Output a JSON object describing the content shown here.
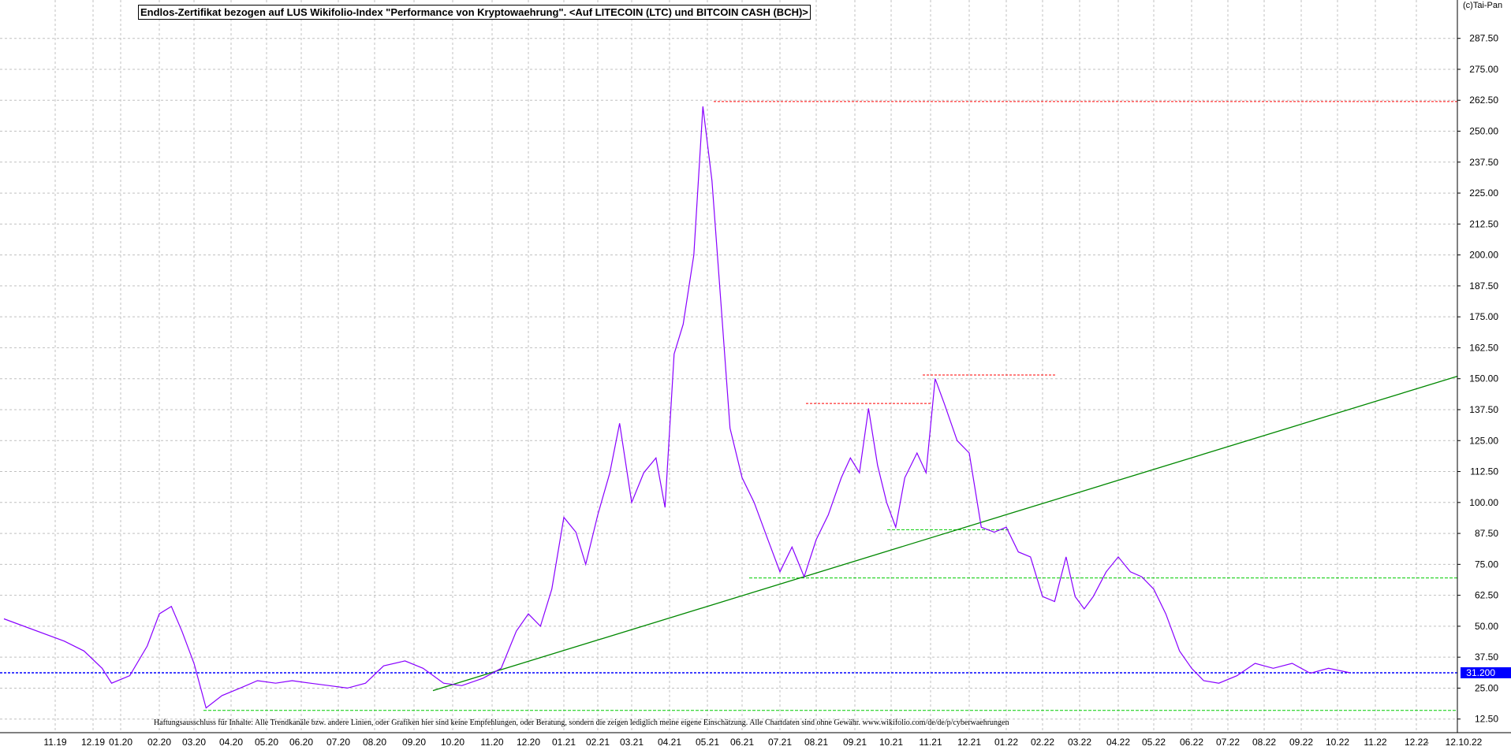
{
  "title": "Endlos-Zertifikat bezogen auf LUS Wikifolio-Index \"Performance von Kryptowaehrung\". <Auf LITECOIN (LTC) und BITCOIN CASH (BCH)>",
  "copyright": "(c)Tai-Pan",
  "disclaimer": "Haftungsausschluss für Inhalte: Alle Trendkanäle bzw. andere Linien, oder Grafiken hier sind keine Empfehlungen, oder Beratung, sondern die zeigen lediglich meine eigene Einschätzung. Alle Chartdaten sind ohne Gewähr.  www.wikifolio.com/de/de/p/cyberwaehrungen",
  "colors": {
    "price_line": "#8800ff",
    "trend_line": "#008800",
    "support_line": "#00cc00",
    "resistance_line": "#ff0000",
    "current_line": "#0000ff",
    "grid": "#c0c0c0"
  },
  "chart_data": {
    "type": "line",
    "title": "Endlos-Zertifikat bezogen auf LUS Wikifolio-Index \"Performance von Kryptowaehrung\". <Auf LITECOIN (LTC) und BITCOIN CASH (BCH)>",
    "x_tick_labels": [
      "11.19",
      "12.19",
      "01.20",
      "02.20",
      "03.20",
      "04.20",
      "05.20",
      "06.20",
      "07.20",
      "08.20",
      "09.20",
      "10.20",
      "11.20",
      "12.20",
      "01.21",
      "02.21",
      "03.21",
      "04.21",
      "05.21",
      "06.21",
      "07.21",
      "08.21",
      "09.21",
      "10.21",
      "11.21",
      "12.21",
      "01.22",
      "02.22",
      "03.22",
      "04.22",
      "05.22",
      "06.22",
      "07.22",
      "08.22",
      "09.22",
      "10.22",
      "11.22",
      "12.22",
      "-",
      "12.10.22"
    ],
    "y_tick_labels": [
      "12.50",
      "25.00",
      "37.50",
      "50.00",
      "62.50",
      "75.00",
      "87.50",
      "100.00",
      "112.50",
      "125.00",
      "137.50",
      "150.00",
      "162.50",
      "175.00",
      "187.50",
      "200.00",
      "212.50",
      "225.00",
      "237.50",
      "250.00",
      "262.50",
      "275.00",
      "287.50"
    ],
    "ylim": [
      7.0,
      303.0
    ],
    "grid": true,
    "current_value": 31.2,
    "current_value_label": "31.200",
    "series": [
      {
        "points": [
          [
            "11.19",
            53
          ],
          [
            "11.19",
            44
          ],
          [
            "12.19",
            40
          ],
          [
            "12.19",
            33
          ],
          [
            "01.20",
            27
          ],
          [
            "01.20",
            30
          ],
          [
            "02.20",
            42
          ],
          [
            "02.20",
            55
          ],
          [
            "02.20",
            58
          ],
          [
            "03.20",
            48
          ],
          [
            "03.20",
            35
          ],
          [
            "03.20",
            17
          ],
          [
            "04.20",
            22
          ],
          [
            "04.20",
            25
          ],
          [
            "05.20",
            28
          ],
          [
            "05.20",
            27
          ],
          [
            "06.20",
            28
          ],
          [
            "06.20",
            27
          ],
          [
            "07.20",
            26
          ],
          [
            "07.20",
            25
          ],
          [
            "08.20",
            27
          ],
          [
            "08.20",
            34
          ],
          [
            "09.20",
            36
          ],
          [
            "09.20",
            33
          ],
          [
            "10.20",
            27
          ],
          [
            "10.20",
            26
          ],
          [
            "11.20",
            29
          ],
          [
            "11.20",
            33
          ],
          [
            "12.20",
            48
          ],
          [
            "12.20",
            55
          ],
          [
            "12.20",
            50
          ],
          [
            "01.21",
            65
          ],
          [
            "01.21",
            94
          ],
          [
            "01.21",
            88
          ],
          [
            "02.21",
            75
          ],
          [
            "02.21",
            95
          ],
          [
            "02.21",
            112
          ],
          [
            "03.21",
            132
          ],
          [
            "03.21",
            100
          ],
          [
            "03.21",
            112
          ],
          [
            "04.21",
            118
          ],
          [
            "04.21",
            98
          ],
          [
            "04.21",
            160
          ],
          [
            "04.21",
            172
          ],
          [
            "05.21",
            200
          ],
          [
            "05.21",
            260
          ],
          [
            "05.21",
            230
          ],
          [
            "05.21",
            180
          ],
          [
            "06.21",
            130
          ],
          [
            "06.21",
            110
          ],
          [
            "06.21",
            100
          ],
          [
            "07.21",
            85
          ],
          [
            "07.21",
            72
          ],
          [
            "07.21",
            82
          ],
          [
            "08.21",
            70
          ],
          [
            "08.21",
            85
          ],
          [
            "08.21",
            95
          ],
          [
            "09.21",
            110
          ],
          [
            "09.21",
            118
          ],
          [
            "09.21",
            112
          ],
          [
            "09.21",
            138
          ],
          [
            "10.21",
            115
          ],
          [
            "10.21",
            100
          ],
          [
            "10.21",
            90
          ],
          [
            "10.21",
            110
          ],
          [
            "11.21",
            120
          ],
          [
            "11.21",
            112
          ],
          [
            "11.21",
            150
          ],
          [
            "11.21",
            140
          ],
          [
            "12.21",
            125
          ],
          [
            "12.21",
            120
          ],
          [
            "12.21",
            90
          ],
          [
            "01.22",
            88
          ],
          [
            "01.22",
            90
          ],
          [
            "01.22",
            80
          ],
          [
            "02.22",
            78
          ],
          [
            "02.22",
            62
          ],
          [
            "02.22",
            60
          ],
          [
            "03.22",
            78
          ],
          [
            "03.22",
            62
          ],
          [
            "03.22",
            57
          ],
          [
            "03.22",
            62
          ],
          [
            "04.22",
            72
          ],
          [
            "04.22",
            78
          ],
          [
            "04.22",
            72
          ],
          [
            "05.22",
            70
          ],
          [
            "05.22",
            65
          ],
          [
            "05.22",
            55
          ],
          [
            "06.22",
            40
          ],
          [
            "06.22",
            33
          ],
          [
            "06.22",
            28
          ],
          [
            "07.22",
            27
          ],
          [
            "07.22",
            30
          ],
          [
            "08.22",
            35
          ],
          [
            "08.22",
            33
          ],
          [
            "09.22",
            35
          ],
          [
            "09.22",
            31
          ],
          [
            "10.22",
            33
          ],
          [
            "10.22",
            31.2
          ]
        ]
      }
    ],
    "annotation_lines": {
      "resistance_levels": [
        262.0,
        151.5,
        140.0
      ],
      "support_levels": [
        89.0,
        69.5,
        16.0
      ],
      "current_level": 31.2,
      "rising_trendline": [
        [
          "10.20",
          24.0
        ],
        [
          "12.22",
          151.0
        ]
      ]
    }
  }
}
